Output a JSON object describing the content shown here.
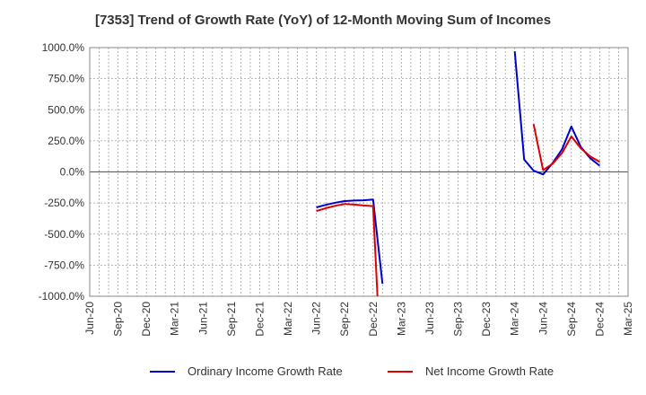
{
  "chart_data": {
    "type": "line",
    "title": "[7353]  Trend of Growth Rate (YoY) of 12-Month Moving Sum of Incomes",
    "x_ticks": [
      "Jun-20",
      "Sep-20",
      "Dec-20",
      "Mar-21",
      "Jun-21",
      "Sep-21",
      "Dec-21",
      "Mar-22",
      "Jun-22",
      "Sep-22",
      "Dec-22",
      "Mar-23",
      "Jun-23",
      "Sep-23",
      "Dec-23",
      "Mar-24",
      "Jun-24",
      "Sep-24",
      "Dec-24",
      "Mar-25"
    ],
    "y_ticks": [
      "1000.0%",
      "750.0%",
      "500.0%",
      "250.0%",
      "0.0%",
      "-250.0%",
      "-500.0%",
      "-750.0%",
      "-1000.0%"
    ],
    "ylim": [
      -1000,
      1000
    ],
    "grid": true,
    "legend_position": "bottom",
    "series": [
      {
        "name": "Ordinary Income Growth Rate",
        "color": "#0000cc",
        "points": [
          [
            "2022-06",
            -285
          ],
          [
            "2022-07",
            -265
          ],
          [
            "2022-08",
            -248
          ],
          [
            "2022-09",
            -235
          ],
          [
            "2022-10",
            -230
          ],
          [
            "2022-11",
            -228
          ],
          [
            "2022-12",
            -222
          ],
          [
            "2023-01",
            -900
          ],
          [
            "2024-03",
            970
          ],
          [
            "2024-04",
            100
          ],
          [
            "2024-05",
            10
          ],
          [
            "2024-06",
            -20
          ],
          [
            "2024-07",
            70
          ],
          [
            "2024-08",
            180
          ],
          [
            "2024-09",
            365
          ],
          [
            "2024-10",
            200
          ],
          [
            "2024-11",
            110
          ],
          [
            "2024-12",
            50
          ]
        ]
      },
      {
        "name": "Net Income Growth Rate",
        "color": "#dd0000",
        "points": [
          [
            "2022-06",
            -315
          ],
          [
            "2022-07",
            -292
          ],
          [
            "2022-08",
            -272
          ],
          [
            "2022-09",
            -258
          ],
          [
            "2022-10",
            -263
          ],
          [
            "2022-11",
            -270
          ],
          [
            "2022-12",
            -275
          ],
          [
            "2022-12-15",
            -1000
          ],
          [
            "2024-05",
            385
          ],
          [
            "2024-06",
            15
          ],
          [
            "2024-07",
            65
          ],
          [
            "2024-08",
            150
          ],
          [
            "2024-09",
            285
          ],
          [
            "2024-10",
            190
          ],
          [
            "2024-11",
            125
          ],
          [
            "2024-12",
            80
          ]
        ]
      }
    ]
  }
}
